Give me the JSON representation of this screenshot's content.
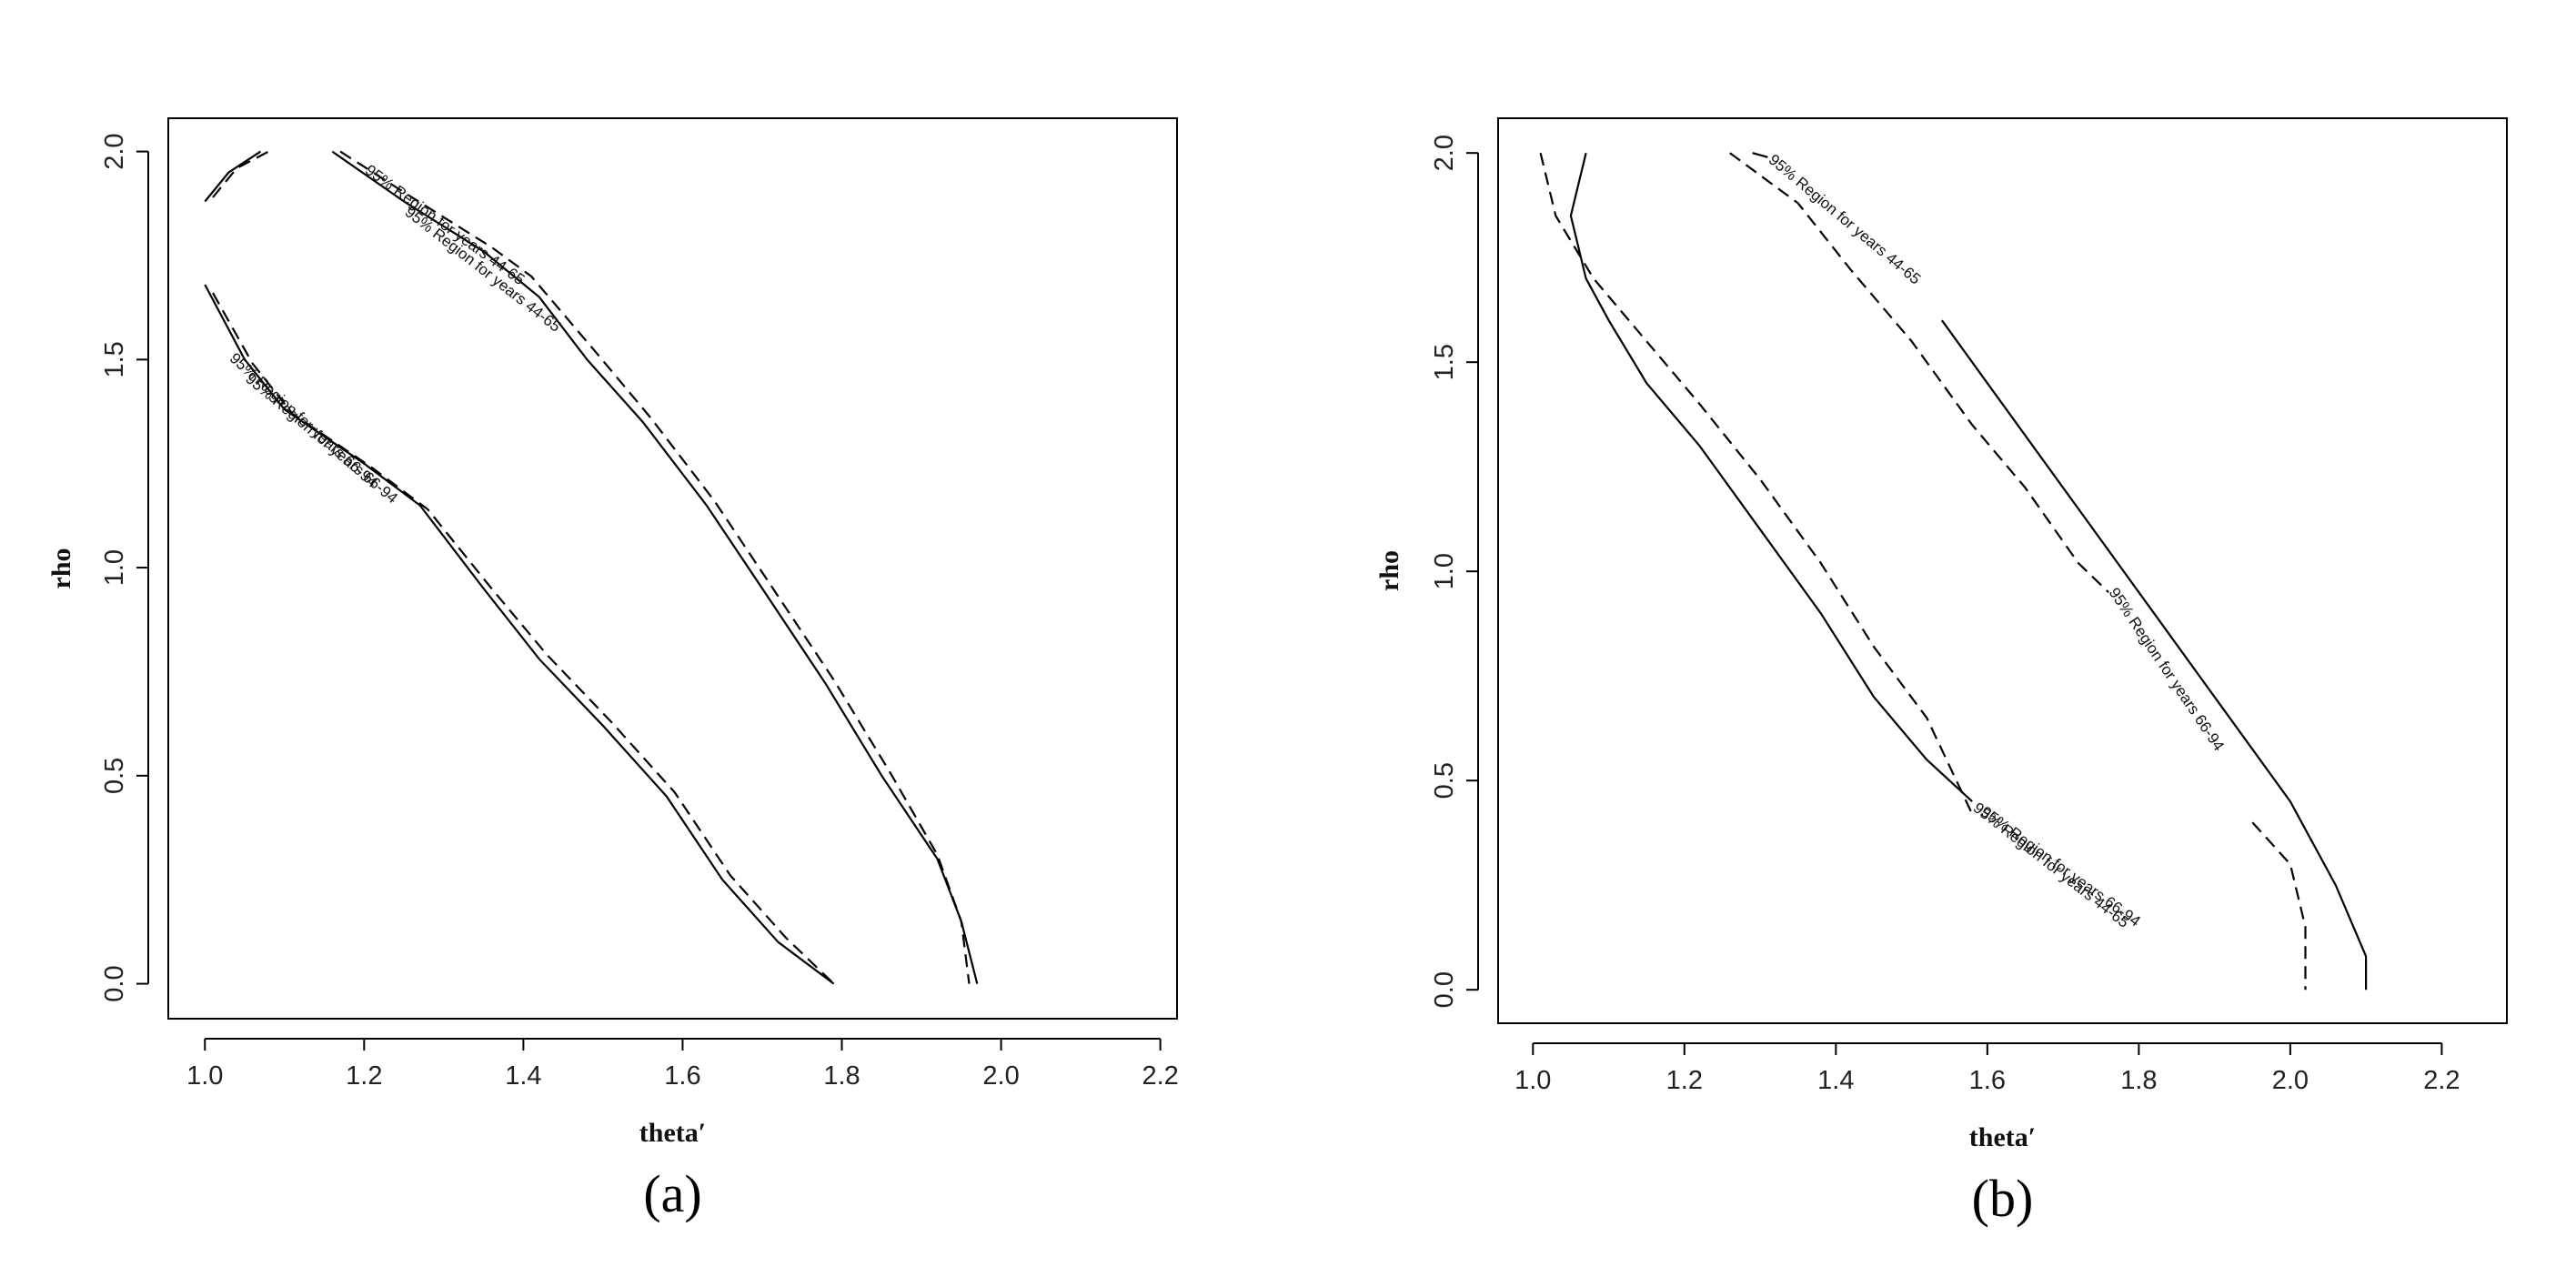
{
  "chart_data": [
    {
      "type": "line",
      "caption": "(a)",
      "xlabel": "theta′",
      "ylabel": "rho",
      "xlim": [
        0.954,
        2.221
      ],
      "ylim": [
        -0.084,
        2.08
      ],
      "xticks": [
        1.0,
        1.2,
        1.4,
        1.6,
        1.8,
        2.0,
        2.2
      ],
      "yticks": [
        0.0,
        0.5,
        1.0,
        1.5,
        2.0
      ],
      "series": [
        {
          "name": "95% Region for years 44-65",
          "color": "#000000",
          "linestyle": "solid",
          "x": [
            1.0,
            1.05,
            1.1,
            1.2,
            1.27,
            1.35,
            1.42,
            1.5,
            1.58,
            1.65,
            1.72,
            1.79,
            null,
            1.16,
            1.25,
            1.35,
            1.42,
            1.48,
            1.55,
            1.63,
            1.7,
            1.78,
            1.85,
            1.92,
            1.95,
            1.97,
            null,
            1.0,
            1.03,
            1.07
          ],
          "values": [
            1.68,
            1.5,
            1.38,
            1.25,
            1.15,
            0.95,
            0.78,
            0.62,
            0.45,
            0.25,
            0.1,
            0.0,
            null,
            2.0,
            1.88,
            1.76,
            1.65,
            1.5,
            1.35,
            1.15,
            0.95,
            0.72,
            0.5,
            0.3,
            0.15,
            0.0,
            null,
            1.88,
            1.95,
            2.0
          ]
        },
        {
          "name": "95% Region for years 66-94",
          "color": "#000000",
          "linestyle": "dashed",
          "x": [
            1.01,
            1.06,
            1.11,
            1.21,
            1.28,
            1.36,
            1.43,
            1.51,
            1.59,
            1.66,
            1.73,
            1.79,
            null,
            1.17,
            1.26,
            1.36,
            1.41,
            1.49,
            1.56,
            1.64,
            1.71,
            1.79,
            1.86,
            1.92,
            1.95,
            1.96,
            null,
            1.01,
            1.04,
            1.08
          ],
          "values": [
            1.66,
            1.49,
            1.37,
            1.24,
            1.14,
            0.95,
            0.79,
            0.63,
            0.46,
            0.26,
            0.11,
            0.0,
            null,
            2.0,
            1.89,
            1.77,
            1.7,
            1.52,
            1.36,
            1.16,
            0.96,
            0.73,
            0.51,
            0.31,
            0.15,
            0.0,
            null,
            1.89,
            1.96,
            2.0
          ]
        }
      ]
    },
    {
      "type": "line",
      "caption": "(b)",
      "xlabel": "theta′",
      "ylabel": "rho",
      "xlim": [
        0.954,
        2.286
      ],
      "ylim": [
        -0.08,
        2.083
      ],
      "xticks": [
        1.0,
        1.2,
        1.4,
        1.6,
        1.8,
        2.0,
        2.2
      ],
      "yticks": [
        0.0,
        0.5,
        1.0,
        1.5,
        2.0
      ],
      "series": [
        {
          "name": "95% Region for years 44-65",
          "color": "#000000",
          "linestyle": "solid",
          "x": [
            1.07,
            1.05,
            1.07,
            1.1,
            1.15,
            1.22,
            1.3,
            1.38,
            1.45,
            1.52,
            1.58,
            null,
            1.29,
            1.31,
            null,
            1.54,
            1.6,
            1.7,
            1.8,
            1.9,
            2.0,
            2.06,
            2.1,
            2.1
          ],
          "values": [
            2.0,
            1.85,
            1.7,
            1.6,
            1.45,
            1.3,
            1.1,
            0.9,
            0.7,
            0.55,
            0.45,
            null,
            2.0,
            1.99,
            null,
            1.6,
            1.45,
            1.2,
            0.95,
            0.7,
            0.45,
            0.25,
            0.08,
            0.0
          ]
        },
        {
          "name": "95% Region for years 66-94",
          "color": "#000000",
          "linestyle": "dashed",
          "x": [
            1.01,
            1.03,
            1.08,
            1.15,
            1.22,
            1.3,
            1.38,
            1.45,
            1.52,
            1.58,
            null,
            1.26,
            1.35,
            1.42,
            1.5,
            1.58,
            1.65,
            1.72,
            1.76,
            null,
            1.95,
            2.0,
            2.02,
            2.02
          ],
          "values": [
            2.0,
            1.85,
            1.7,
            1.55,
            1.4,
            1.22,
            1.02,
            0.82,
            0.65,
            0.42,
            null,
            2.0,
            1.88,
            1.72,
            1.55,
            1.35,
            1.2,
            1.02,
            0.95,
            null,
            0.4,
            0.3,
            0.15,
            0.0
          ]
        }
      ]
    }
  ]
}
